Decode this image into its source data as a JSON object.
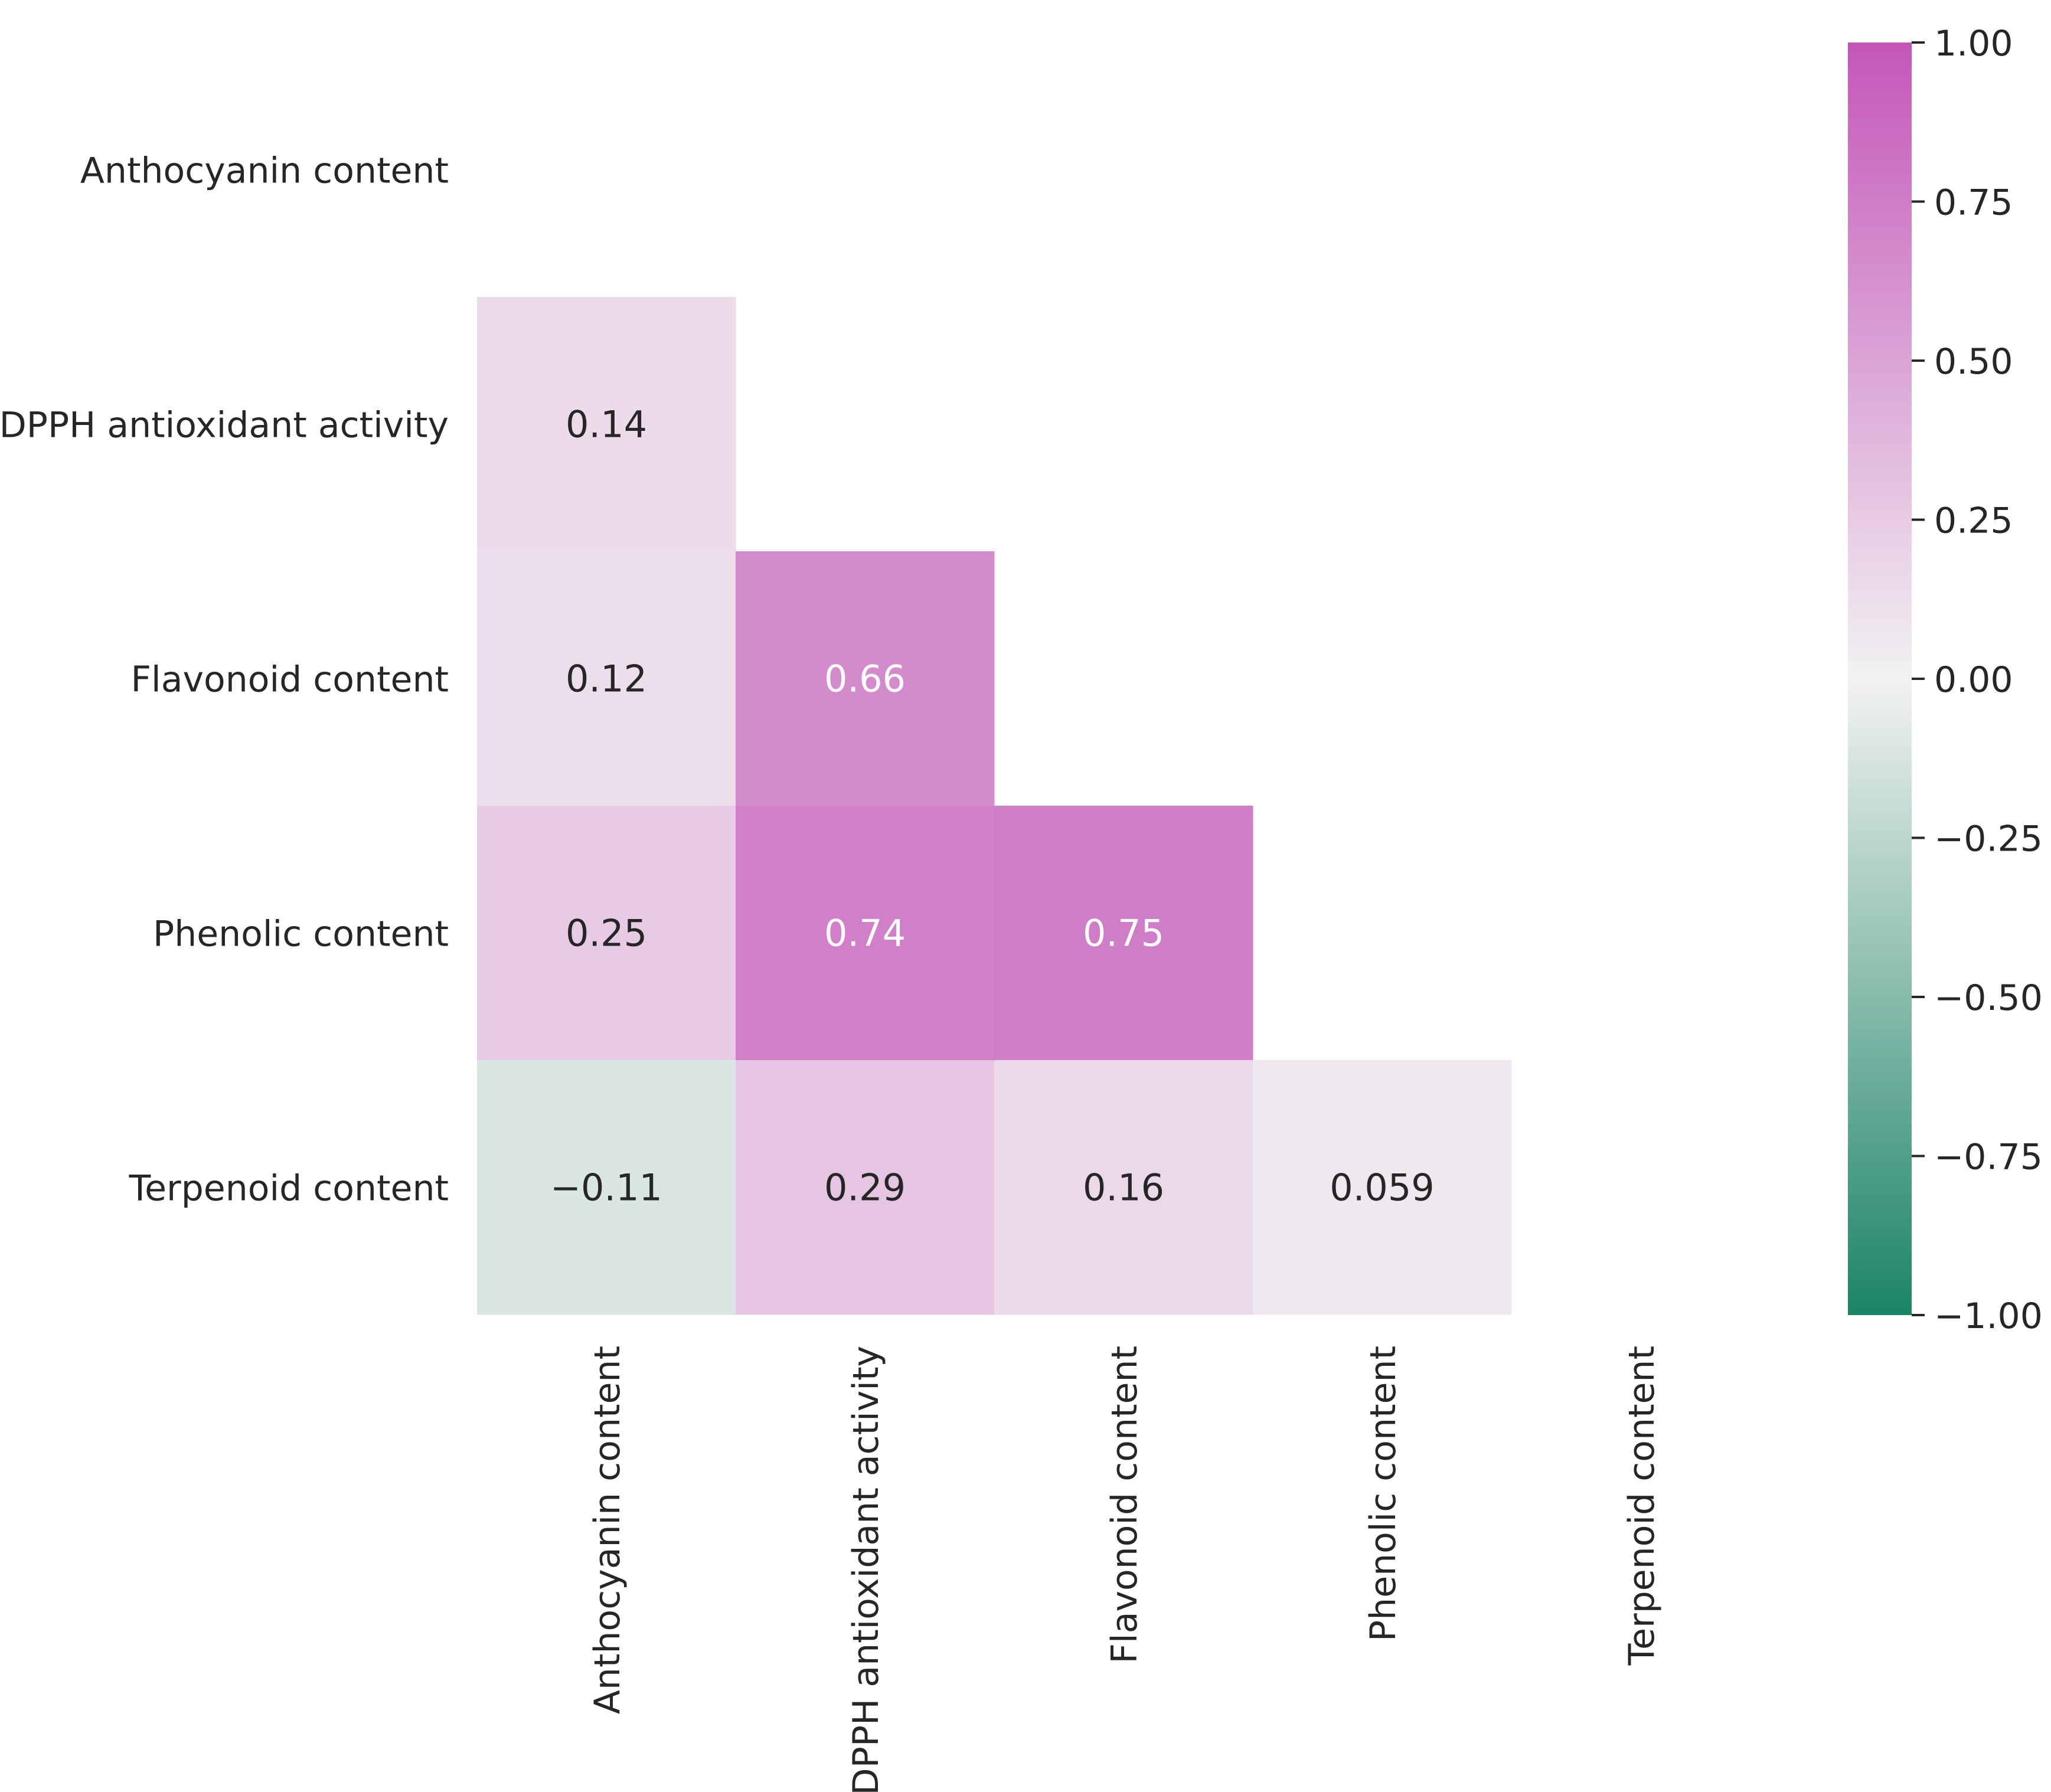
{
  "chart_data": {
    "type": "heatmap",
    "title": "",
    "variables": [
      "Anthocyanin content",
      "DPPH antioxidant activity",
      "Flavonoid content",
      "Phenolic content",
      "Terpenoid content"
    ],
    "mask": "upper-triangle-including-diagonal",
    "cells": [
      {
        "row": 1,
        "col": 0,
        "value": 0.14,
        "label": "0.14"
      },
      {
        "row": 2,
        "col": 0,
        "value": 0.12,
        "label": "0.12"
      },
      {
        "row": 2,
        "col": 1,
        "value": 0.66,
        "label": "0.66"
      },
      {
        "row": 3,
        "col": 0,
        "value": 0.25,
        "label": "0.25"
      },
      {
        "row": 3,
        "col": 1,
        "value": 0.74,
        "label": "0.74"
      },
      {
        "row": 3,
        "col": 2,
        "value": 0.75,
        "label": "0.75"
      },
      {
        "row": 4,
        "col": 0,
        "value": -0.11,
        "label": "−0.11"
      },
      {
        "row": 4,
        "col": 1,
        "value": 0.29,
        "label": "0.29"
      },
      {
        "row": 4,
        "col": 2,
        "value": 0.16,
        "label": "0.16"
      },
      {
        "row": 4,
        "col": 3,
        "value": 0.059,
        "label": "0.059"
      }
    ],
    "colorbar": {
      "vmin": -1.0,
      "vmax": 1.0,
      "ticks": [
        1.0,
        0.75,
        0.5,
        0.25,
        0.0,
        -0.25,
        -0.5,
        -0.75,
        -1.0
      ],
      "tick_labels": [
        "1.00",
        "0.75",
        "0.50",
        "0.25",
        "0.00",
        "−0.25",
        "−0.50",
        "−0.75",
        "−1.00"
      ],
      "colors": {
        "low": "#1b8466",
        "mid": "#f2f2f2",
        "high": "#c456b9"
      }
    },
    "light_text_color": "#ffffff",
    "dark_text_color": "#262626"
  }
}
